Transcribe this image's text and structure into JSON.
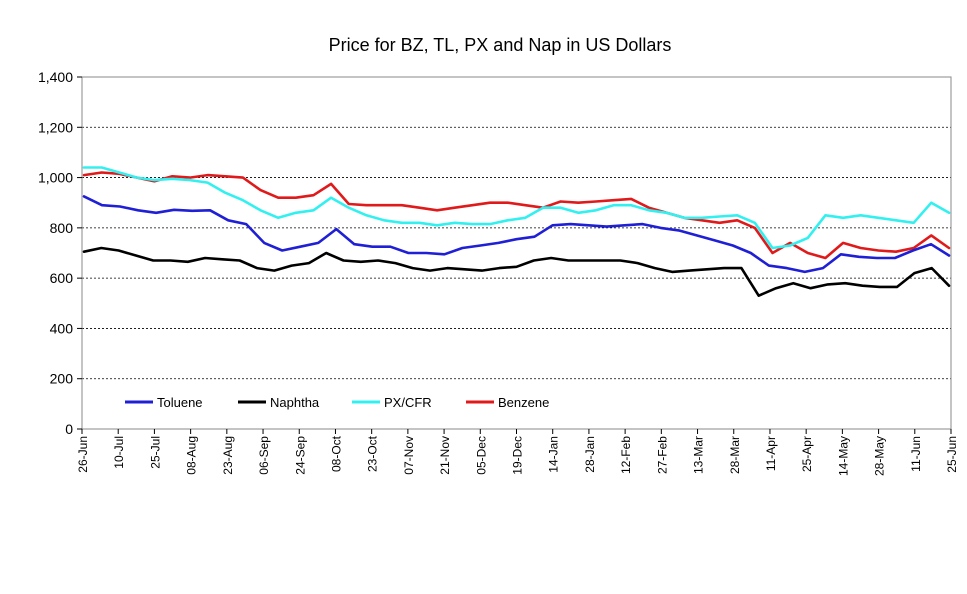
{
  "chart_data": {
    "type": "line",
    "title": "Price for BZ, TL, PX and Nap in US Dollars",
    "xlabel": "",
    "ylabel": "",
    "ylim": [
      0,
      1400
    ],
    "yticks": [
      0,
      200,
      400,
      600,
      800,
      1000,
      1200,
      1400
    ],
    "ytick_labels": [
      "0",
      "200",
      "400",
      "600",
      "800",
      "1,000",
      "1,200",
      "1,400"
    ],
    "x_tick_labels": [
      "26-Jun",
      "10-Jul",
      "25-Jul",
      "08-Aug",
      "23-Aug",
      "06-Sep",
      "24-Sep",
      "08-Oct",
      "23-Oct",
      "07-Nov",
      "21-Nov",
      "05-Dec",
      "19-Dec",
      "14-Jan",
      "28-Jan",
      "12-Feb",
      "27-Feb",
      "13-Mar",
      "28-Mar",
      "11-Apr",
      "25-Apr",
      "14-May",
      "28-May",
      "11-Jun",
      "25-Jun"
    ],
    "grid": "horizontal",
    "legend_position": "bottom-left inside",
    "series": [
      {
        "name": "Toluene",
        "color": "#1f1fd6",
        "values": [
          925,
          890,
          885,
          870,
          860,
          872,
          868,
          870,
          830,
          815,
          740,
          710,
          725,
          740,
          795,
          735,
          725,
          725,
          700,
          700,
          695,
          720,
          730,
          740,
          755,
          765,
          810,
          815,
          810,
          805,
          810,
          815,
          800,
          790,
          770,
          750,
          730,
          700,
          650,
          640,
          625,
          640,
          695,
          685,
          680,
          680,
          710,
          735,
          690
        ]
      },
      {
        "name": "Naphtha",
        "color": "#000000",
        "values": [
          705,
          720,
          710,
          690,
          670,
          670,
          665,
          680,
          675,
          670,
          640,
          630,
          650,
          660,
          700,
          670,
          665,
          670,
          660,
          640,
          630,
          640,
          635,
          630,
          640,
          645,
          670,
          680,
          670,
          670,
          670,
          670,
          660,
          640,
          625,
          630,
          635,
          640,
          640,
          530,
          560,
          580,
          560,
          575,
          580,
          570,
          565,
          565,
          620,
          640,
          570
        ]
      },
      {
        "name": "PX/CFR",
        "color": "#33f0f0",
        "values": [
          1040,
          1040,
          1020,
          1000,
          990,
          995,
          990,
          980,
          940,
          910,
          870,
          840,
          860,
          870,
          920,
          880,
          850,
          830,
          820,
          820,
          810,
          820,
          815,
          815,
          830,
          840,
          880,
          880,
          860,
          870,
          890,
          890,
          870,
          860,
          840,
          840,
          845,
          850,
          820,
          720,
          730,
          760,
          850,
          840,
          850,
          840,
          830,
          820,
          900,
          860
        ]
      },
      {
        "name": "Benzene",
        "color": "#e01a1a",
        "values": [
          1010,
          1020,
          1015,
          1000,
          985,
          1005,
          1000,
          1010,
          1005,
          1000,
          950,
          920,
          920,
          930,
          975,
          895,
          890,
          890,
          890,
          880,
          870,
          880,
          890,
          900,
          900,
          890,
          880,
          905,
          900,
          905,
          910,
          915,
          880,
          860,
          840,
          830,
          820,
          830,
          800,
          700,
          740,
          700,
          680,
          740,
          720,
          710,
          705,
          720,
          770,
          720
        ]
      }
    ]
  }
}
